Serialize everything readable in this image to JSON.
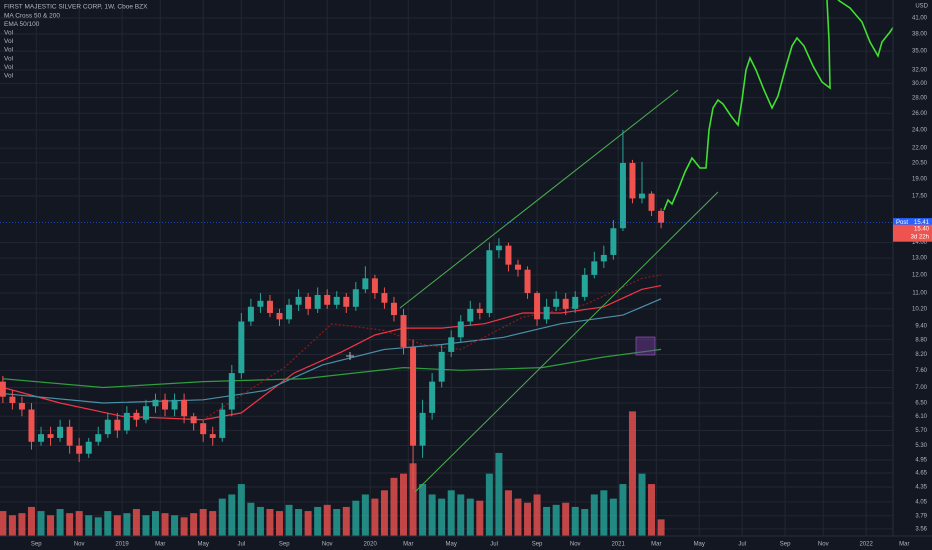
{
  "chart_data": {
    "type": "candlestick",
    "legend": [
      "FIRST MAJESTIC SILVER CORP, 1W, Cboe BZX",
      "MA Cross 50 & 200",
      "EMA 50/100",
      "Vol",
      "Vol",
      "Vol",
      "Vol",
      "Vol",
      "Vol"
    ],
    "currency": "USD",
    "last_price": {
      "tag": "Post",
      "value": 15.41
    },
    "close_price": {
      "value": 15.4,
      "label": "15.40"
    },
    "countdown": "3d 22h",
    "log_scale": true,
    "grid": true,
    "up_color": "#26a69a",
    "down_color": "#ef5350",
    "xlim": [
      -0.6,
      194.8
    ],
    "ylim": [
      3.44,
      44.7
    ],
    "vlim": [
      0,
      65
    ],
    "xticks": [
      {
        "value": 7,
        "label": "Sep"
      },
      {
        "value": 16,
        "label": "Nov"
      },
      {
        "value": 25,
        "label": "2019"
      },
      {
        "value": 33,
        "label": "Mar"
      },
      {
        "value": 42,
        "label": "May"
      },
      {
        "value": 50,
        "label": "Jul"
      },
      {
        "value": 59,
        "label": "Sep"
      },
      {
        "value": 68,
        "label": "Nov"
      },
      {
        "value": 77,
        "label": "2020"
      },
      {
        "value": 85,
        "label": "Mar"
      },
      {
        "value": 94,
        "label": "May"
      },
      {
        "value": 103,
        "label": "Jul"
      },
      {
        "value": 112,
        "label": "Sep"
      },
      {
        "value": 120,
        "label": "Nov"
      },
      {
        "value": 129,
        "label": "2021"
      },
      {
        "value": 137,
        "label": "Mar"
      },
      {
        "value": 146,
        "label": "May"
      },
      {
        "value": 155,
        "label": "Jul"
      },
      {
        "value": 164,
        "label": "Sep"
      },
      {
        "value": 172,
        "label": "Nov"
      },
      {
        "value": 181,
        "label": "2022"
      },
      {
        "value": 189,
        "label": "Mar"
      }
    ],
    "yticks": [
      3.56,
      3.79,
      4.05,
      4.35,
      4.65,
      4.95,
      {
        "value": 5.3,
        "label": "5.30"
      },
      {
        "value": 5.7,
        "label": "5.70"
      },
      {
        "value": 6.1,
        "label": "6.10"
      },
      {
        "value": 6.5,
        "label": "6.50"
      },
      {
        "value": 7,
        "label": "7.00"
      },
      {
        "value": 7.6,
        "label": "7.60"
      },
      {
        "value": 8.2,
        "label": "8.20"
      },
      {
        "value": 8.8,
        "label": "8.80"
      },
      {
        "value": 9.4,
        "label": "9.40"
      },
      {
        "value": 10.2,
        "label": "10.20"
      },
      {
        "value": 11,
        "label": "11.00"
      },
      {
        "value": 12,
        "label": "12.00"
      },
      {
        "value": 13,
        "label": "13.00"
      },
      {
        "value": 14,
        "label": "14.00"
      },
      {
        "value": 17.5,
        "label": "17.50"
      },
      {
        "value": 19,
        "label": "19.00"
      },
      {
        "value": 20.5,
        "label": "20.50"
      },
      {
        "value": 22,
        "label": "22.00"
      },
      {
        "value": 24,
        "label": "24.00"
      },
      {
        "value": 26,
        "label": "26.00"
      },
      {
        "value": 28,
        "label": "28.00"
      },
      {
        "value": 30,
        "label": "30.00"
      },
      {
        "value": 32,
        "label": "32.00"
      },
      {
        "value": 35,
        "label": "35.00"
      },
      {
        "value": 38,
        "label": "38.00"
      },
      {
        "value": 41,
        "label": "41.00"
      }
    ],
    "x": [
      0,
      2,
      4,
      6,
      8,
      10,
      12,
      14,
      16,
      18,
      20,
      22,
      24,
      26,
      28,
      30,
      32,
      34,
      36,
      38,
      40,
      42,
      44,
      46,
      48,
      50,
      52,
      54,
      56,
      58,
      60,
      62,
      64,
      66,
      68,
      70,
      72,
      74,
      76,
      78,
      80,
      82,
      84,
      86,
      88,
      90,
      92,
      94,
      96,
      98,
      100,
      102,
      104,
      106,
      108,
      110,
      112,
      114,
      116,
      118,
      120,
      122,
      124,
      126,
      128,
      130,
      132,
      134,
      136,
      138
    ],
    "open": [
      7.2,
      6.7,
      6.5,
      6.3,
      5.4,
      5.6,
      5.5,
      5.8,
      5.3,
      5.1,
      5.4,
      5.6,
      6.0,
      5.7,
      6.2,
      6.0,
      6.4,
      6.6,
      6.3,
      6.6,
      6.1,
      5.9,
      5.6,
      5.5,
      6.3,
      7.5,
      9.6,
      10.3,
      10.6,
      10.0,
      9.7,
      10.4,
      10.8,
      10.2,
      10.9,
      10.4,
      10.8,
      10.3,
      11.2,
      11.8,
      11.0,
      10.5,
      9.9,
      8.5,
      5.3,
      6.2,
      7.2,
      8.3,
      8.9,
      9.6,
      10.2,
      10.0,
      13.5,
      13.8,
      12.6,
      12.3,
      11.0,
      9.7,
      10.3,
      10.7,
      10.2,
      10.8,
      12.0,
      12.8,
      13.2,
      15.0,
      20.5,
      17.3,
      17.7,
      16.3
    ],
    "high": [
      7.4,
      6.9,
      6.7,
      6.5,
      5.8,
      5.8,
      6.0,
      6.0,
      5.5,
      5.5,
      5.8,
      6.2,
      6.2,
      6.4,
      6.3,
      6.6,
      6.8,
      6.8,
      6.8,
      6.8,
      6.2,
      6.0,
      5.8,
      6.5,
      7.8,
      10.0,
      10.7,
      11.0,
      10.9,
      10.2,
      10.7,
      11.2,
      11.0,
      11.3,
      11.2,
      11.1,
      11.0,
      11.6,
      12.5,
      12.0,
      11.3,
      10.8,
      10.2,
      8.8,
      6.6,
      7.5,
      8.6,
      9.2,
      9.9,
      10.6,
      10.5,
      14.0,
      14.3,
      14.0,
      12.9,
      12.5,
      11.1,
      10.7,
      11.1,
      11.0,
      11.1,
      12.4,
      13.4,
      13.8,
      15.6,
      24.0,
      20.8,
      20.6,
      17.9,
      16.5
    ],
    "low": [
      6.5,
      6.3,
      6.1,
      5.2,
      5.3,
      5.3,
      5.4,
      5.1,
      4.9,
      5.0,
      5.3,
      5.5,
      5.5,
      5.6,
      5.8,
      5.9,
      6.2,
      6.1,
      6.1,
      5.9,
      5.7,
      5.4,
      5.3,
      5.4,
      6.1,
      7.3,
      9.4,
      10.0,
      9.8,
      9.4,
      9.5,
      10.1,
      9.9,
      10.0,
      10.2,
      10.2,
      10.0,
      10.1,
      11.0,
      10.7,
      10.2,
      9.6,
      8.2,
      4.3,
      5.0,
      6.0,
      7.0,
      8.1,
      8.7,
      9.4,
      9.7,
      9.8,
      13.0,
      12.2,
      11.9,
      10.7,
      9.4,
      9.5,
      10.1,
      9.9,
      10.0,
      10.6,
      11.8,
      12.4,
      12.9,
      14.8,
      16.9,
      16.9,
      15.9,
      15.0
    ],
    "close": [
      6.7,
      6.5,
      6.3,
      5.4,
      5.6,
      5.5,
      5.8,
      5.3,
      5.1,
      5.4,
      5.6,
      6.0,
      5.7,
      6.2,
      6.0,
      6.4,
      6.6,
      6.3,
      6.6,
      6.1,
      5.9,
      5.6,
      5.5,
      6.3,
      7.5,
      9.6,
      10.3,
      10.6,
      10.0,
      9.7,
      10.4,
      10.8,
      10.2,
      10.9,
      10.4,
      10.8,
      10.3,
      11.2,
      11.8,
      11.0,
      10.5,
      9.9,
      8.5,
      5.3,
      6.2,
      7.2,
      8.3,
      8.9,
      9.6,
      10.2,
      10.0,
      13.5,
      13.8,
      12.6,
      12.3,
      11.0,
      9.7,
      10.3,
      10.7,
      10.2,
      10.8,
      12.0,
      12.8,
      13.2,
      15.0,
      20.5,
      17.3,
      17.7,
      16.3,
      15.4
    ],
    "volume": [
      12,
      10,
      11,
      14,
      12,
      10,
      13,
      11,
      12,
      10,
      9,
      12,
      10,
      11,
      13,
      10,
      12,
      11,
      10,
      9,
      11,
      13,
      12,
      18,
      20,
      25,
      16,
      14,
      13,
      12,
      15,
      13,
      12,
      14,
      15,
      13,
      14,
      17,
      20,
      18,
      22,
      28,
      30,
      35,
      25,
      20,
      18,
      22,
      20,
      18,
      17,
      30,
      40,
      22,
      18,
      16,
      20,
      14,
      15,
      16,
      14,
      13,
      20,
      22,
      18,
      25,
      60,
      30,
      25,
      8
    ],
    "lines": [
      {
        "color": "#f23645",
        "x": [
          0,
          12,
          25,
          42,
          50,
          61,
          71,
          78,
          84,
          92,
          101,
          109,
          117,
          126,
          134,
          138
        ],
        "values": [
          7.0,
          6.5,
          6.1,
          6.0,
          6.2,
          7.5,
          8.3,
          9.0,
          9.3,
          9.3,
          9.5,
          10.0,
          10.0,
          10.3,
          11.2,
          11.4
        ]
      },
      {
        "color": "#4a90a8",
        "x": [
          0,
          21,
          42,
          55,
          67,
          80,
          92,
          105,
          117,
          130,
          138
        ],
        "values": [
          6.8,
          6.5,
          6.6,
          6.9,
          7.8,
          8.4,
          8.6,
          8.9,
          9.5,
          9.9,
          10.7
        ]
      },
      {
        "color": "#2e9e3e",
        "x": [
          0,
          21,
          42,
          63,
          84,
          96,
          113,
          126,
          138
        ],
        "values": [
          7.3,
          7.0,
          7.2,
          7.3,
          7.7,
          7.6,
          7.7,
          8.1,
          8.4
        ]
      },
      {
        "color": "#8b1a1a",
        "x": [
          42,
          59,
          69,
          80,
          88,
          96,
          109,
          122,
          134,
          138
        ],
        "values": [
          6.0,
          7.7,
          9.5,
          9.2,
          8.6,
          8.4,
          9.8,
          10.4,
          11.8,
          12.0
        ]
      }
    ]
  }
}
